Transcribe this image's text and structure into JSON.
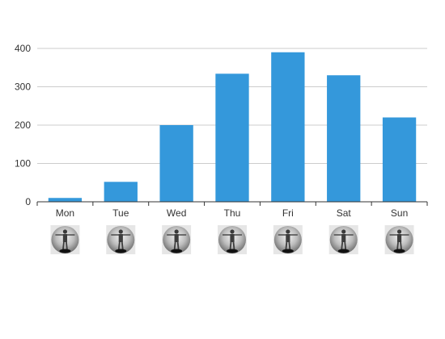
{
  "chart_data": {
    "type": "bar",
    "categories": [
      "Mon",
      "Tue",
      "Wed",
      "Thu",
      "Fri",
      "Sat",
      "Sun"
    ],
    "values": [
      10,
      52,
      200,
      334,
      390,
      330,
      220
    ],
    "ylim": [
      0,
      400
    ],
    "yticks": [
      0,
      100,
      200,
      300,
      400
    ],
    "grid": true,
    "bar_color": "#3498db",
    "category_icon": "standing-person-avatar-icon"
  }
}
